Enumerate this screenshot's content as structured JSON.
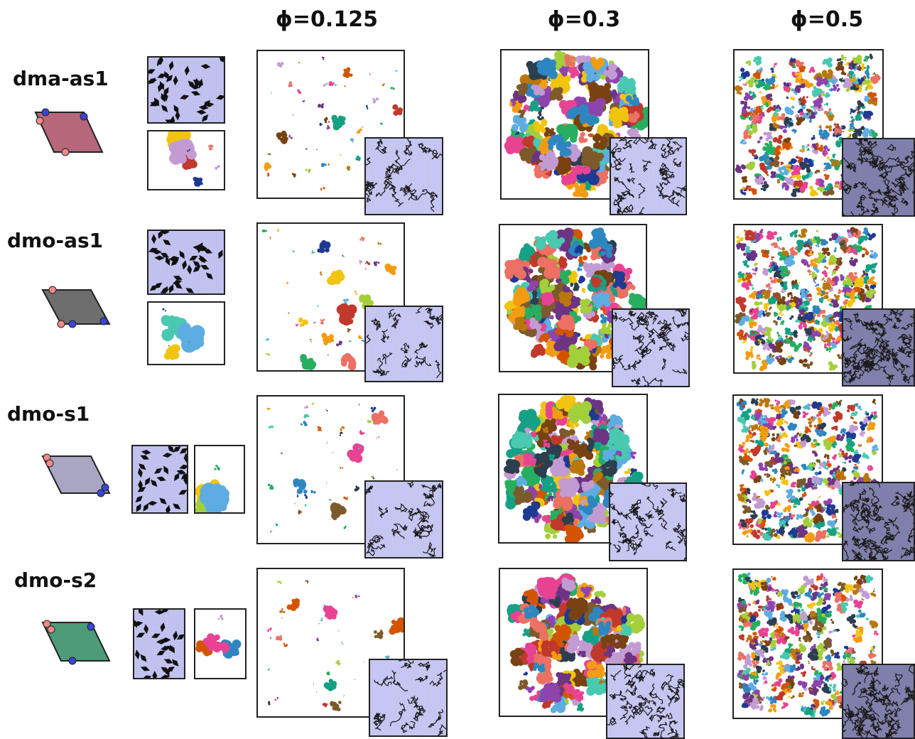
{
  "columns": [
    {
      "label": "ϕ=0.125"
    },
    {
      "label": "ϕ=0.3"
    },
    {
      "label": "ϕ=0.5"
    }
  ],
  "rows": [
    {
      "label": "dma-as1",
      "shape_color": "#b7677a"
    },
    {
      "label": "dmo-as1",
      "shape_color": "#6e6e6e"
    },
    {
      "label": "dmo-s1",
      "shape_color": "#a9a6c4"
    },
    {
      "label": "dmo-s2",
      "shape_color": "#4d9b78"
    }
  ],
  "colors": {
    "patch_red": "#f08a8a",
    "patch_blue": "#3a45d6",
    "lattice_bg": "#c9c9f4",
    "cluster_palette": [
      "#c0392b",
      "#8e44ad",
      "#2e86c1",
      "#27ae60",
      "#f1c40f",
      "#d35400",
      "#16a085",
      "#e84393",
      "#6c3483",
      "#7d5a2b",
      "#a3cf3b",
      "#1f3a93",
      "#f39c12",
      "#5dade2",
      "#c39bd3",
      "#784212",
      "#48c9b0",
      "#ec7063",
      "#2c3e50",
      "#b9770e"
    ]
  }
}
